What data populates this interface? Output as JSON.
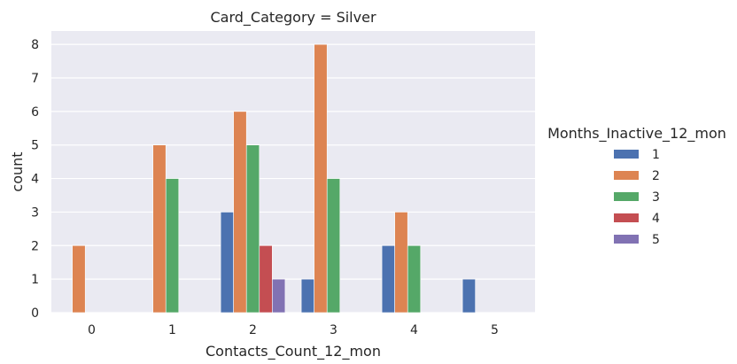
{
  "chart_data": {
    "type": "bar",
    "title": "Card_Category = Silver",
    "xlabel": "Contacts_Count_12_mon",
    "ylabel": "count",
    "categories": [
      "0",
      "1",
      "2",
      "3",
      "4",
      "5"
    ],
    "ylim": [
      0,
      8.4
    ],
    "yticks": [
      0,
      1,
      2,
      3,
      4,
      5,
      6,
      7,
      8
    ],
    "grid": true,
    "legend": {
      "title": "Months_Inactive_12_mon",
      "placement": "right"
    },
    "series": [
      {
        "name": "1",
        "color": "#4c72b0",
        "values": [
          0,
          0,
          3,
          1,
          2,
          1
        ]
      },
      {
        "name": "2",
        "color": "#dd8452",
        "values": [
          2,
          5,
          6,
          8,
          3,
          0
        ]
      },
      {
        "name": "3",
        "color": "#55a868",
        "values": [
          0,
          4,
          5,
          4,
          2,
          0
        ]
      },
      {
        "name": "4",
        "color": "#c44e52",
        "values": [
          0,
          0,
          2,
          0,
          0,
          0
        ]
      },
      {
        "name": "5",
        "color": "#8172b3",
        "values": [
          0,
          0,
          1,
          0,
          0,
          0
        ]
      }
    ]
  }
}
